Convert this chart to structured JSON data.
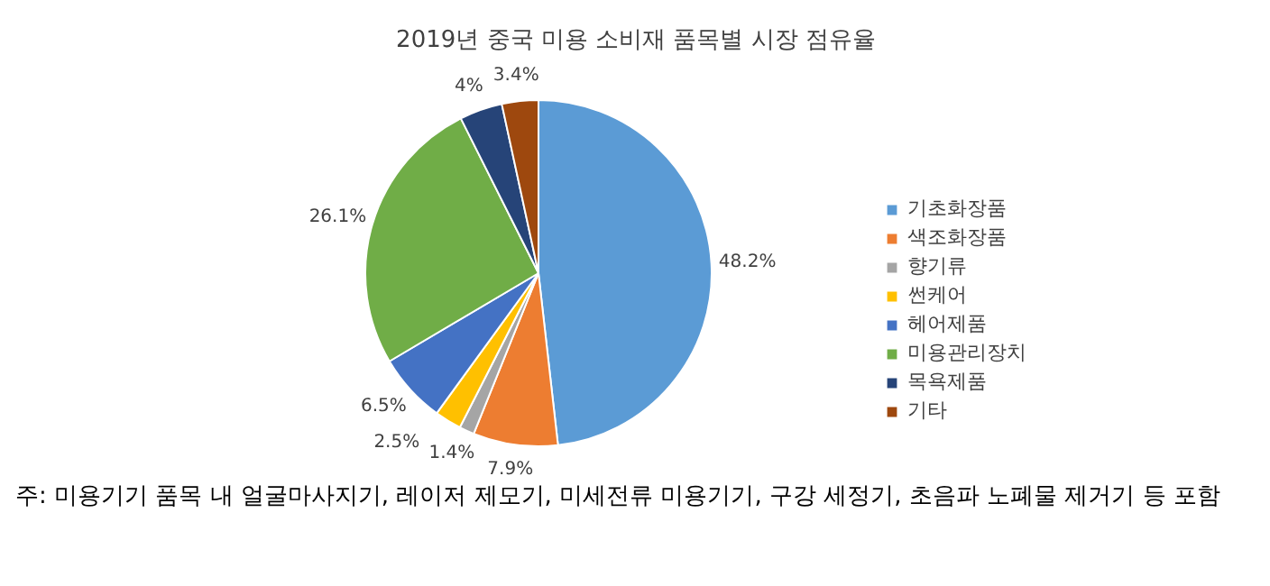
{
  "chart_data": {
    "type": "pie",
    "title": "2019년 중국 미용 소비재 품목별 시장 점유율",
    "categories": [
      "기초화장품",
      "색조화장품",
      "향기류",
      "썬케어",
      "헤어제품",
      "미용관리장치",
      "목욕제품",
      "기타"
    ],
    "values": [
      48.2,
      7.9,
      1.4,
      2.5,
      6.5,
      26.1,
      4,
      3.4
    ],
    "colors": [
      "#5b9bd5",
      "#ed7d31",
      "#a5a5a5",
      "#ffc000",
      "#4472c4",
      "#70ad47",
      "#264478",
      "#9e480e"
    ],
    "value_labels": [
      "48.2%",
      "7.9%",
      "1.4%",
      "2.5%",
      "6.5%",
      "26.1%",
      "4%",
      "3.4%"
    ],
    "legend": "right",
    "annotations": [
      "주: 미용기기 품목 내 얼굴마사지기, 레이저 제모기, 미세전류 미용기기, 구강 세정기, 초음파 노폐물 제거기 등 포함"
    ]
  }
}
